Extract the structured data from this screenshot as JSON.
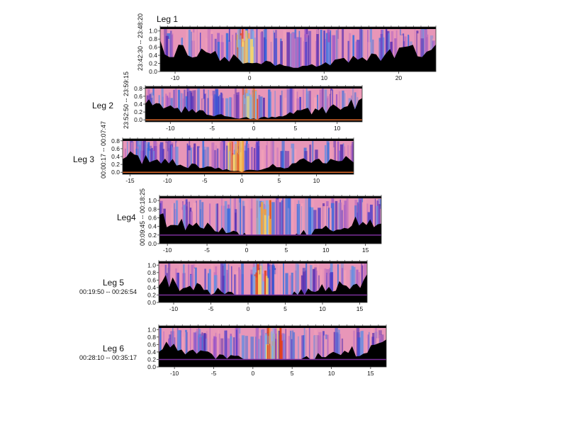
{
  "chart_data": [
    {
      "type": "heatmap",
      "title": "Leg 1",
      "time_range": "23:42:30 -- 23:48:20",
      "xlim": [
        -12,
        25
      ],
      "ylim": [
        0.0,
        1.1
      ],
      "xticks": [
        -10,
        0,
        10,
        20
      ],
      "yticks": [
        0.0,
        0.2,
        0.4,
        0.6,
        0.8,
        1.0
      ],
      "bottom_line": "none",
      "centre_maximum_x": -0.5,
      "colormap": [
        "#000000",
        "#5a2fb0",
        "#2f6fe0",
        "#8fb6e8",
        "#f09ab0",
        "#f5d06a",
        "#e0401f"
      ]
    },
    {
      "type": "heatmap",
      "title": "Leg 2",
      "time_range": "23:52:50 -- 23:59:15",
      "xlim": [
        -13,
        13
      ],
      "ylim": [
        -0.05,
        0.85
      ],
      "xticks": [
        -10,
        -5,
        0,
        5,
        10
      ],
      "yticks": [
        0.0,
        0.2,
        0.4,
        0.6,
        0.8
      ],
      "bottom_line": "orange",
      "centre_maximum_x": -0.5
    },
    {
      "type": "heatmap",
      "title": "Leg 3",
      "time_range": "00:00:17 -- 00:07:47",
      "xlim": [
        -16,
        15
      ],
      "ylim": [
        -0.05,
        0.85
      ],
      "xticks": [
        -15,
        -10,
        -5,
        0,
        5,
        10
      ],
      "yticks": [
        0.0,
        0.2,
        0.4,
        0.6,
        0.8
      ],
      "bottom_line": "orange",
      "centre_maximum_x": -1
    },
    {
      "type": "heatmap",
      "title": "Leg4",
      "time_range": "00:09:45 -- 00:18:25",
      "xlim": [
        -11,
        17
      ],
      "ylim": [
        0.0,
        1.1
      ],
      "xticks": [
        -10,
        -5,
        0,
        5,
        10,
        15
      ],
      "yticks": [
        0.0,
        0.2,
        0.4,
        0.6,
        0.8,
        1.0
      ],
      "bottom_line": "purple",
      "centre_maximum_x": 2
    },
    {
      "type": "heatmap",
      "title": "Leg 5",
      "time_range": "00:19:50 -- 00:26:54",
      "xlim": [
        -12,
        16
      ],
      "ylim": [
        0.0,
        1.1
      ],
      "xticks": [
        -10,
        -5,
        0,
        5,
        10,
        15
      ],
      "yticks": [
        0.0,
        0.2,
        0.4,
        0.6,
        0.8,
        1.0
      ],
      "bottom_line": "purple",
      "centre_maximum_x": 1.5
    },
    {
      "type": "heatmap",
      "title": "Leg 6",
      "time_range": "00:28:10 -- 00:35:17",
      "xlim": [
        -12,
        17
      ],
      "ylim": [
        0.0,
        1.1
      ],
      "xticks": [
        -10,
        -5,
        0,
        5,
        10,
        15
      ],
      "yticks": [
        0.0,
        0.2,
        0.4,
        0.6,
        0.8,
        1.0
      ],
      "bottom_line": "purple",
      "centre_maximum_x": 2.5
    }
  ]
}
